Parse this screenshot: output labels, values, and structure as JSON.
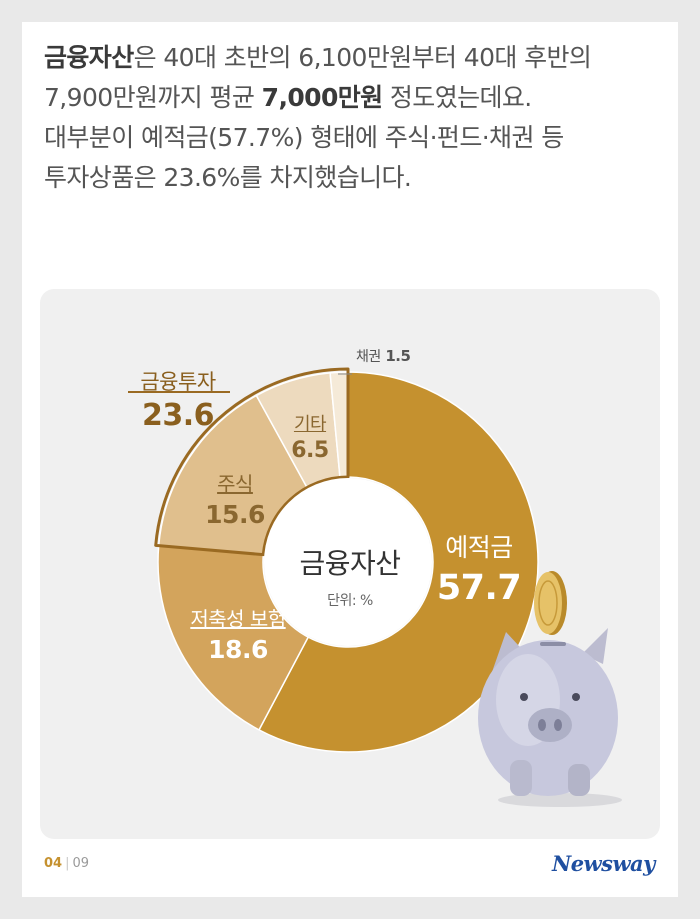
{
  "intro": {
    "l1_b": "금융자산",
    "l1_t": "은 40대 초반의 6,100만원부터 40대 후반의",
    "l2_a": "7,900만원까지 평균 ",
    "l2_b": "7,000만원",
    "l2_c": " 정도였는데요.",
    "l3": "대부분이 예적금(57.7%) 형태에 주식·펀드·채권 등",
    "l4": "투자상품은 23.6%를 차지했습니다."
  },
  "chart_data": {
    "type": "pie",
    "center_label": "금융자산",
    "unit_label": "단위: %",
    "slices": [
      {
        "name": "예적금",
        "value": 57.7,
        "color": "#c5912f"
      },
      {
        "name": "저축성 보험",
        "value": 18.6,
        "color": "#d3a45c"
      },
      {
        "name": "주식",
        "value": 15.6,
        "color": "#e0bf8d"
      },
      {
        "name": "기타",
        "value": 6.5,
        "color": "#eddabe"
      },
      {
        "name": "채권",
        "value": 1.5,
        "color": "#f5ead8"
      }
    ],
    "group": {
      "name": "금융투자",
      "value": 23.6,
      "members": [
        "주식",
        "기타",
        "채권"
      ],
      "color": "#9a6a22"
    }
  },
  "footer": {
    "page_current": "04",
    "page_total": "09",
    "logo": "Newsway"
  }
}
